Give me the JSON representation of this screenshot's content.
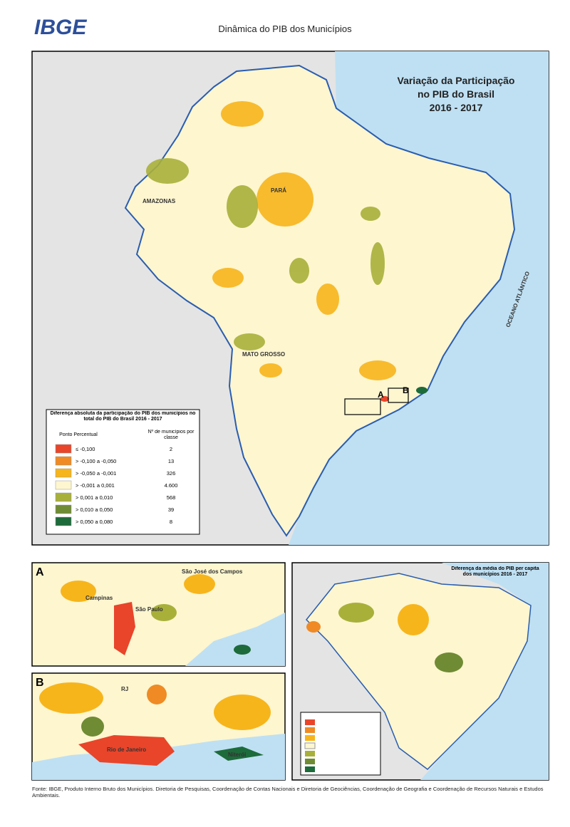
{
  "header": {
    "logo": "IBGE",
    "title": "Dinâmica do PIB dos Municípios"
  },
  "main_map": {
    "title_lines": [
      "Variação da Participação",
      "no PIB do Brasil",
      "2016 - 2017"
    ],
    "labels": {
      "ocean": "OCEANO ATLÂNTICO",
      "para": "PARÁ",
      "amazonas": "AMAZONAS",
      "mato_grosso": "MATO GROSSO",
      "inset_a": "A",
      "inset_b": "B"
    }
  },
  "legend": {
    "title": "Diferença absoluta da participação do PIB dos municípios no total do PIB do Brasil 2016 - 2017",
    "headers": [
      "Ponto Percentual",
      "Nº de municípios por classe"
    ],
    "rows": [
      {
        "label": "≤ -0,100",
        "count": "2",
        "color": "#e8452b"
      },
      {
        "label": "> -0,100 a -0,050",
        "count": "13",
        "color": "#f08a24"
      },
      {
        "label": "> -0,050 a -0,001",
        "count": "326",
        "color": "#f7b51c"
      },
      {
        "label": "> -0,001 a 0,001",
        "count": "4.600",
        "color": "#fdf6cf"
      },
      {
        "label": "> 0,001 a 0,010",
        "count": "568",
        "color": "#a8b03a"
      },
      {
        "label": "> 0,010 a 0,050",
        "count": "39",
        "color": "#6f8b34"
      },
      {
        "label": "> 0,050 a 0,080",
        "count": "8",
        "color": "#1d6b3a"
      }
    ]
  },
  "inset_a": {
    "letter": "A",
    "labels": [
      "São Paulo",
      "Campinas",
      "São José dos Campos"
    ]
  },
  "inset_b": {
    "letter": "B",
    "labels": [
      "RJ",
      "Rio de Janeiro",
      "Niterói"
    ]
  },
  "per_capita_map": {
    "title": "Diferença da média do PIB per capita dos municípios 2016 - 2017"
  },
  "footer": {
    "source": "Fonte: IBGE, Produto Interno Bruto dos Municípios. Diretoria de Pesquisas, Coordenação de Contas Nacionais e Diretoria de Geociências, Coordenação de Geografia e Coordenação de Recursos Naturais e Estudos Ambientais."
  }
}
